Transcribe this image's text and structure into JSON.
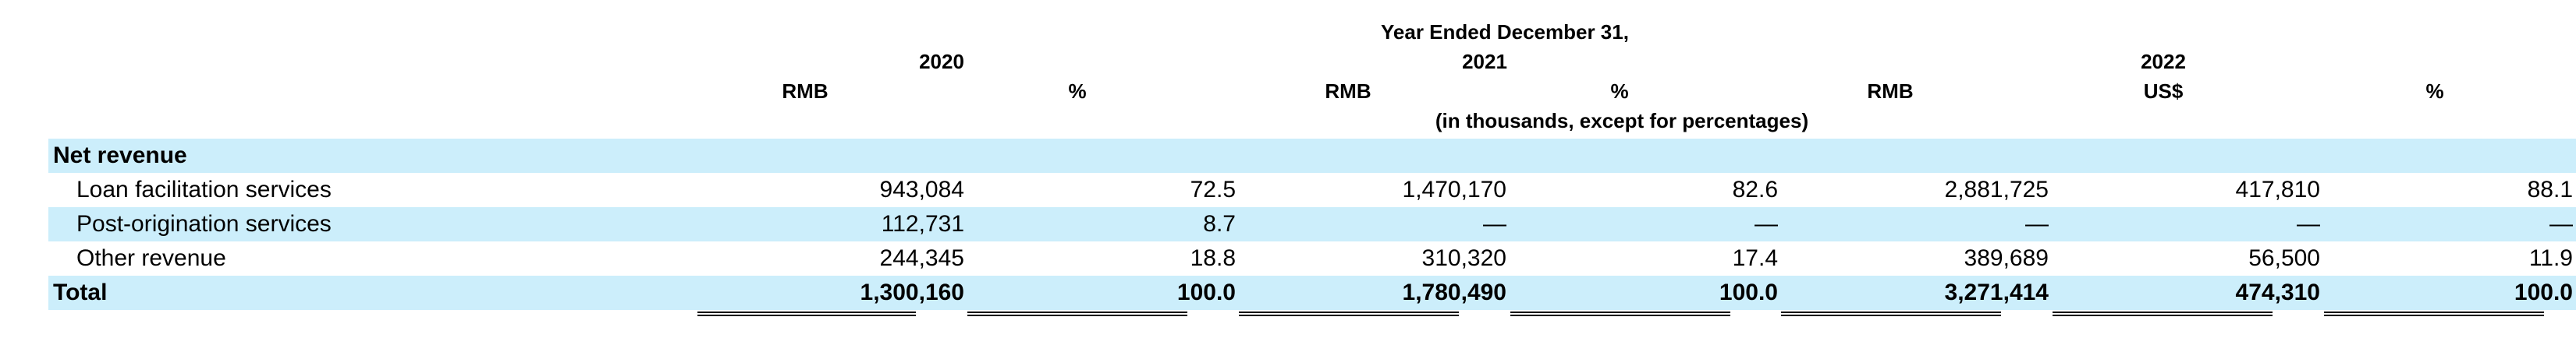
{
  "table": {
    "period_title": "Year Ended December 31,",
    "years": [
      "2020",
      "2021",
      "2022"
    ],
    "currency_headers": [
      "RMB",
      "%",
      "RMB",
      "%",
      "RMB",
      "US$",
      "%"
    ],
    "units_note": "(in thousands, except for percentages)",
    "section_label": "Net revenue",
    "rows": [
      {
        "label": "Loan facilitation services",
        "values": [
          "943,084",
          "72.5",
          "1,470,170",
          "82.6",
          "2,881,725",
          "417,810",
          "88.1"
        ]
      },
      {
        "label": "Post-origination services",
        "values": [
          "112,731",
          "8.7",
          "—",
          "—",
          "—",
          "—",
          "—"
        ]
      },
      {
        "label": "Other revenue",
        "values": [
          "244,345",
          "18.8",
          "310,320",
          "17.4",
          "389,689",
          "56,500",
          "11.9"
        ]
      }
    ],
    "total": {
      "label": "Total",
      "values": [
        "1,300,160",
        "100.0",
        "1,780,490",
        "100.0",
        "3,271,414",
        "474,310",
        "100.0"
      ]
    }
  }
}
